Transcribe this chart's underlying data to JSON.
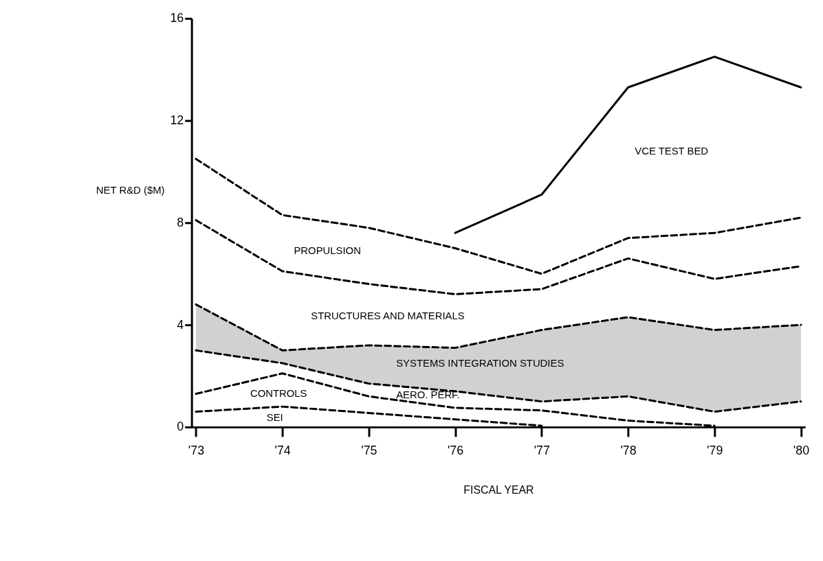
{
  "chart_data": {
    "type": "line",
    "xlabel": "FISCAL YEAR",
    "ylabel": "NET R&D ($M)",
    "categories": [
      "'73",
      "'74",
      "'75",
      "'76",
      "'77",
      "'78",
      "'79",
      "'80"
    ],
    "ylim": [
      0,
      16
    ],
    "yticks": [
      0,
      4,
      8,
      12,
      16
    ],
    "marker": "none",
    "series": [
      {
        "color": "#000000",
        "line_style": "dashed",
        "values": [
          0.6,
          0.8,
          0.55,
          0.3,
          0.05,
          null,
          null,
          null
        ]
      },
      {
        "color": "#000000",
        "line_style": "dashed",
        "values": [
          1.3,
          2.1,
          1.2,
          0.75,
          0.65,
          0.25,
          0.05,
          null
        ]
      },
      {
        "color": "#000000",
        "line_style": "dashed",
        "values": [
          3.0,
          2.5,
          1.7,
          1.4,
          1.0,
          1.2,
          0.6,
          1.0
        ]
      },
      {
        "color": "#000000",
        "line_style": "dashed",
        "values": [
          4.8,
          3.0,
          3.2,
          3.1,
          3.8,
          4.3,
          3.8,
          4.0
        ],
        "lower": [
          3.0,
          2.5,
          1.7,
          1.4,
          1.0,
          1.2,
          0.6,
          1.0
        ],
        "upper": [
          4.8,
          3.0,
          3.2,
          3.1,
          3.8,
          4.3,
          3.8,
          4.0
        ]
      },
      {
        "color": "#000000",
        "line_style": "dashed",
        "values": [
          8.1,
          6.1,
          5.6,
          5.2,
          5.4,
          6.6,
          5.8,
          6.3
        ]
      },
      {
        "color": "#000000",
        "line_style": "dashed",
        "values": [
          10.5,
          8.3,
          7.8,
          7.0,
          6.0,
          7.4,
          7.6,
          8.2
        ]
      },
      {
        "color": "#000000",
        "line_style": "solid",
        "values": [
          null,
          null,
          null,
          7.6,
          9.1,
          13.3,
          14.5,
          13.3
        ]
      }
    ],
    "annotations": [
      "VCE TEST BED",
      "PROPULSION",
      "STRUCTURES AND MATERIALS",
      "SYSTEMS INTEGRATION STUDIES",
      "AERO. PERF.",
      "CONTROLS",
      "SEI"
    ]
  }
}
